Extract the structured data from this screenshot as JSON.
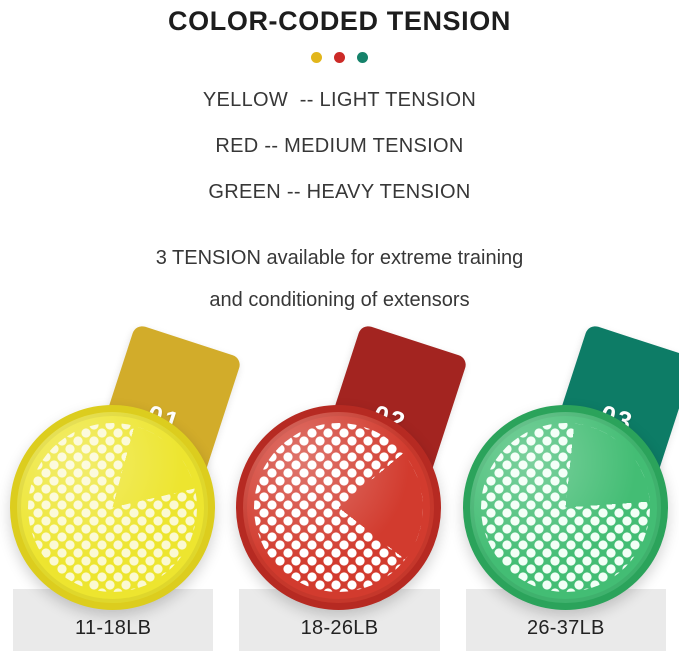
{
  "header": {
    "title": "COLOR-CODED TENSION"
  },
  "legend": {
    "dots": [
      {
        "name": "yellow-dot",
        "color": "#E2B61B"
      },
      {
        "name": "red-dot",
        "color": "#CC2A27"
      },
      {
        "name": "green-dot",
        "color": "#15826A"
      }
    ],
    "lines": [
      "YELLOW  -- LIGHT TENSION",
      "RED -- MEDIUM TENSION",
      "GREEN -- HEAVY TENSION"
    ]
  },
  "description": {
    "line1": "3 TENSION available for extreme training",
    "line2": "and conditioning of extensors"
  },
  "products": [
    {
      "number": "01",
      "weight": "11-18LB",
      "colors": {
        "card": "#D2AC2A",
        "disc": "#EDE52F",
        "rim": "#DCCD1E",
        "hole": "#FBF9D2"
      },
      "wedge": {
        "from": "15deg",
        "size": "62deg"
      }
    },
    {
      "number": "02",
      "weight": "18-26LB",
      "colors": {
        "card": "#A32420",
        "disc": "#D23B2E",
        "rim": "#B62A22",
        "hole": "#FFFFFF"
      },
      "wedge": {
        "from": "50deg",
        "size": "78deg"
      }
    },
    {
      "number": "03",
      "weight": "26-37LB",
      "colors": {
        "card": "#0D7C66",
        "disc": "#43BD74",
        "rim": "#2BA35B",
        "hole": "#F2FFF6"
      },
      "wedge": {
        "from": "6deg",
        "size": "80deg"
      }
    }
  ]
}
